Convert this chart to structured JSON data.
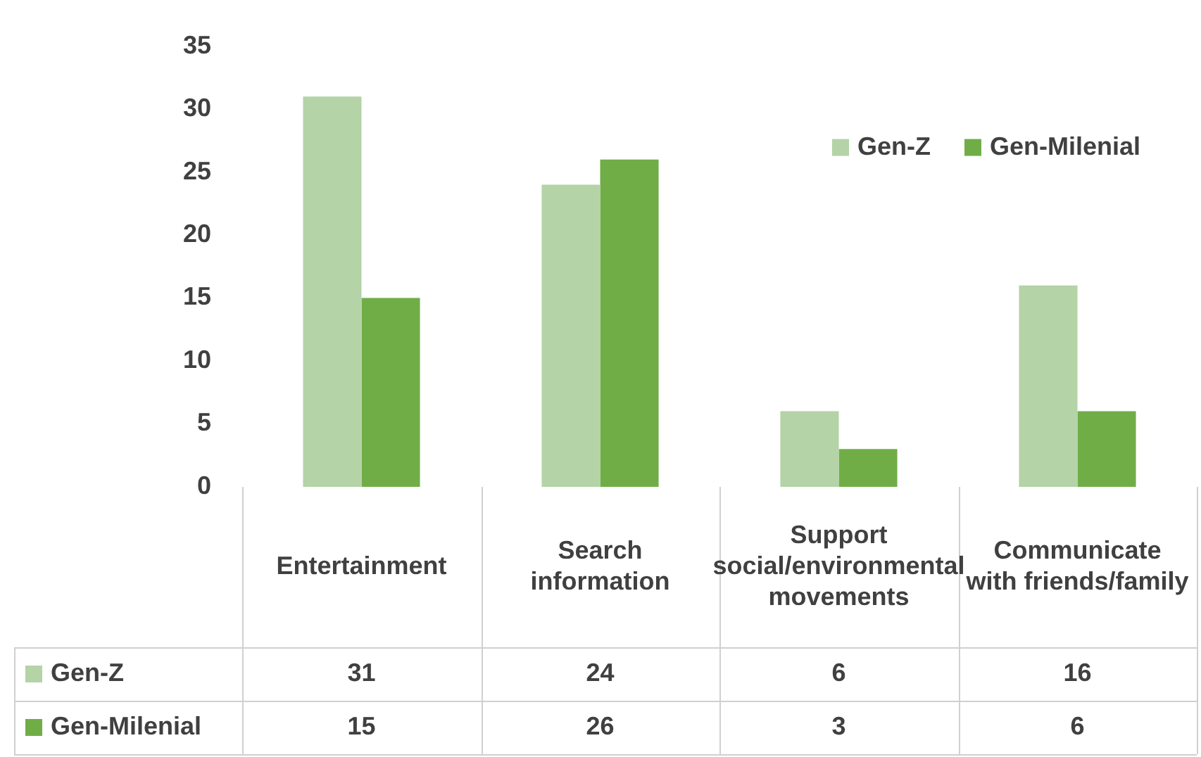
{
  "chart_data": {
    "type": "bar",
    "categories": [
      "Entertainment",
      "Search information",
      "Support social/environmental movements",
      "Communicate with friends/family"
    ],
    "series": [
      {
        "name": "Gen-Z",
        "color": "#b4d3a7",
        "values": [
          31,
          24,
          6,
          16
        ]
      },
      {
        "name": "Gen-Milenial",
        "color": "#70ad47",
        "values": [
          15,
          26,
          3,
          6
        ]
      }
    ],
    "ylim": [
      0,
      35
    ],
    "yticks": [
      0,
      5,
      10,
      15,
      20,
      25,
      30,
      35
    ],
    "grid": false,
    "legend": "top right",
    "data_labels": true
  }
}
